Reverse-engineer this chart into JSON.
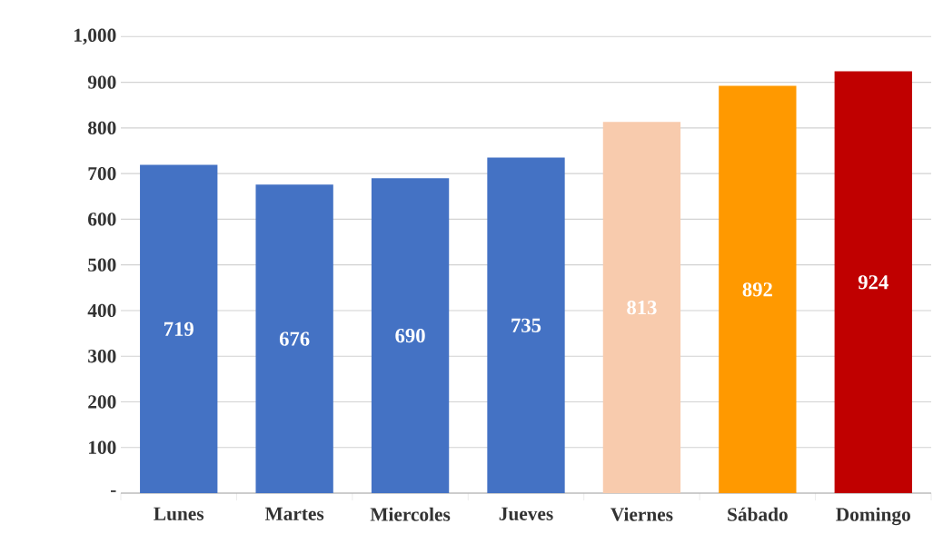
{
  "chart_data": {
    "type": "bar",
    "categories": [
      "Lunes",
      "Martes",
      "Miercoles",
      "Jueves",
      "Viernes",
      "Sábado",
      "Domingo"
    ],
    "values": [
      719,
      676,
      690,
      735,
      813,
      892,
      924
    ],
    "colors": [
      "#4472c4",
      "#4472c4",
      "#4472c4",
      "#4472c4",
      "#f8cbad",
      "#ff9900",
      "#c00000"
    ],
    "ylim": [
      0,
      1000
    ],
    "yticks": [
      {
        "value": 0,
        "label": "-"
      },
      100,
      200,
      300,
      400,
      500,
      600,
      700,
      800,
      900,
      {
        "value": 1000,
        "label": "1,000"
      }
    ],
    "grid": "y",
    "data_labels": true
  }
}
